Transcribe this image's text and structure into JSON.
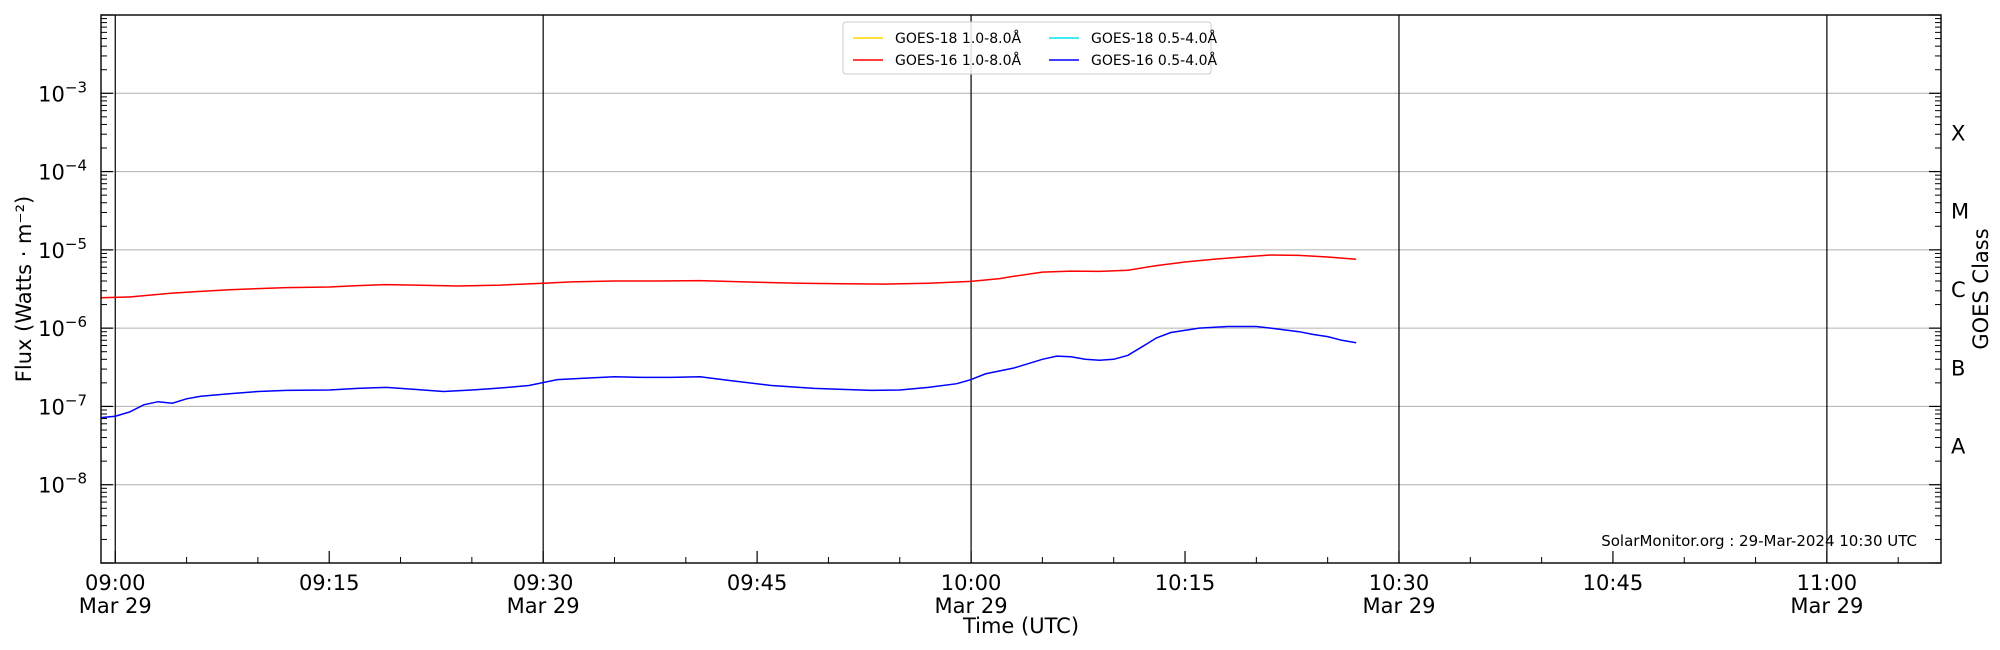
{
  "chart_data": {
    "type": "line",
    "title": "",
    "xlabel": "Time (UTC)",
    "ylabel": "Flux (Watts · m⁻²)",
    "ylabel_right": "GOES Class",
    "y_scale": "log",
    "ylim": [
      1e-09,
      0.01
    ],
    "xlim": [
      "2024-03-29T08:59",
      "2024-03-29T11:08"
    ],
    "grid": "horizontal at each decade",
    "legend_placement": "top-center",
    "y_ticks": [
      {
        "value": 1e-08,
        "base": "10",
        "exp": "−8"
      },
      {
        "value": 1e-07,
        "base": "10",
        "exp": "−7"
      },
      {
        "value": 1e-06,
        "base": "10",
        "exp": "−6"
      },
      {
        "value": 1e-05,
        "base": "10",
        "exp": "−5"
      },
      {
        "value": 0.0001,
        "base": "10",
        "exp": "−4"
      },
      {
        "value": 0.001,
        "base": "10",
        "exp": "−3"
      }
    ],
    "x_ticks": [
      {
        "time": "09:00",
        "label": "09:00",
        "date": "Mar 29"
      },
      {
        "time": "09:15",
        "label": "09:15",
        "date": ""
      },
      {
        "time": "09:30",
        "label": "09:30",
        "date": "Mar 29"
      },
      {
        "time": "09:45",
        "label": "09:45",
        "date": ""
      },
      {
        "time": "10:00",
        "label": "10:00",
        "date": "Mar 29"
      },
      {
        "time": "10:15",
        "label": "10:15",
        "date": ""
      },
      {
        "time": "10:30",
        "label": "10:30",
        "date": "Mar 29"
      },
      {
        "time": "10:45",
        "label": "10:45",
        "date": ""
      },
      {
        "time": "11:00",
        "label": "11:00",
        "date": "Mar 29"
      }
    ],
    "vertical_lines": [
      "09:00",
      "09:30",
      "10:00",
      "10:30",
      "11:00"
    ],
    "goes_classes": [
      {
        "label": "A",
        "value": 3.16e-08
      },
      {
        "label": "B",
        "value": 3.16e-07
      },
      {
        "label": "C",
        "value": 3.16e-06
      },
      {
        "label": "M",
        "value": 3.16e-05
      },
      {
        "label": "X",
        "value": 0.000316
      }
    ],
    "legend": [
      {
        "name": "GOES-18 1.0-8.0Å",
        "color": "#ffd700"
      },
      {
        "name": "GOES-16 1.0-8.0Å",
        "color": "#ff0000"
      },
      {
        "name": "GOES-18 0.5-4.0Å",
        "color": "#00e5ee"
      },
      {
        "name": "GOES-16 0.5-4.0Å",
        "color": "#0000ff"
      }
    ],
    "series": [
      {
        "name": "GOES-16 1.0-8.0Å",
        "color": "#ff0000",
        "points": [
          [
            "08:59",
            2.45e-06
          ],
          [
            "09:01",
            2.5e-06
          ],
          [
            "09:03",
            2.7e-06
          ],
          [
            "09:04",
            2.8e-06
          ],
          [
            "09:06",
            2.95e-06
          ],
          [
            "09:08",
            3.1e-06
          ],
          [
            "09:10",
            3.2e-06
          ],
          [
            "09:12",
            3.3e-06
          ],
          [
            "09:15",
            3.35e-06
          ],
          [
            "09:17",
            3.5e-06
          ],
          [
            "09:19",
            3.6e-06
          ],
          [
            "09:21",
            3.55e-06
          ],
          [
            "09:24",
            3.45e-06
          ],
          [
            "09:27",
            3.55e-06
          ],
          [
            "09:30",
            3.75e-06
          ],
          [
            "09:32",
            3.9e-06
          ],
          [
            "09:35",
            4e-06
          ],
          [
            "09:38",
            4e-06
          ],
          [
            "09:41",
            4.05e-06
          ],
          [
            "09:45",
            3.85e-06
          ],
          [
            "09:48",
            3.75e-06
          ],
          [
            "09:51",
            3.7e-06
          ],
          [
            "09:54",
            3.65e-06
          ],
          [
            "09:57",
            3.75e-06
          ],
          [
            "10:00",
            3.95e-06
          ],
          [
            "10:02",
            4.3e-06
          ],
          [
            "10:03",
            4.6e-06
          ],
          [
            "10:05",
            5.2e-06
          ],
          [
            "10:07",
            5.35e-06
          ],
          [
            "10:09",
            5.3e-06
          ],
          [
            "10:11",
            5.5e-06
          ],
          [
            "10:13",
            6.3e-06
          ],
          [
            "10:15",
            7e-06
          ],
          [
            "10:17",
            7.6e-06
          ],
          [
            "10:19",
            8.1e-06
          ],
          [
            "10:21",
            8.6e-06
          ],
          [
            "10:23",
            8.5e-06
          ],
          [
            "10:25",
            8.1e-06
          ],
          [
            "10:27",
            7.6e-06
          ]
        ]
      },
      {
        "name": "GOES-16 0.5-4.0Å",
        "color": "#0000ff",
        "points": [
          [
            "08:59",
            7.2e-08
          ],
          [
            "09:00",
            7.5e-08
          ],
          [
            "09:01",
            8.5e-08
          ],
          [
            "09:02",
            1.05e-07
          ],
          [
            "09:03",
            1.15e-07
          ],
          [
            "09:04",
            1.1e-07
          ],
          [
            "09:05",
            1.25e-07
          ],
          [
            "09:06",
            1.35e-07
          ],
          [
            "09:08",
            1.45e-07
          ],
          [
            "09:10",
            1.55e-07
          ],
          [
            "09:12",
            1.6e-07
          ],
          [
            "09:15",
            1.62e-07
          ],
          [
            "09:17",
            1.7e-07
          ],
          [
            "09:19",
            1.75e-07
          ],
          [
            "09:21",
            1.65e-07
          ],
          [
            "09:23",
            1.55e-07
          ],
          [
            "09:25",
            1.62e-07
          ],
          [
            "09:27",
            1.72e-07
          ],
          [
            "09:29",
            1.85e-07
          ],
          [
            "09:31",
            2.2e-07
          ],
          [
            "09:33",
            2.3e-07
          ],
          [
            "09:35",
            2.4e-07
          ],
          [
            "09:37",
            2.35e-07
          ],
          [
            "09:39",
            2.35e-07
          ],
          [
            "09:41",
            2.4e-07
          ],
          [
            "09:43",
            2.15e-07
          ],
          [
            "09:46",
            1.85e-07
          ],
          [
            "09:49",
            1.7e-07
          ],
          [
            "09:51",
            1.65e-07
          ],
          [
            "09:53",
            1.6e-07
          ],
          [
            "09:55",
            1.62e-07
          ],
          [
            "09:57",
            1.75e-07
          ],
          [
            "09:59",
            1.95e-07
          ],
          [
            "10:00",
            2.2e-07
          ],
          [
            "10:01",
            2.6e-07
          ],
          [
            "10:03",
            3.1e-07
          ],
          [
            "10:05",
            4e-07
          ],
          [
            "10:06",
            4.4e-07
          ],
          [
            "10:07",
            4.3e-07
          ],
          [
            "10:08",
            4e-07
          ],
          [
            "10:09",
            3.9e-07
          ],
          [
            "10:10",
            4e-07
          ],
          [
            "10:11",
            4.5e-07
          ],
          [
            "10:12",
            5.8e-07
          ],
          [
            "10:13",
            7.5e-07
          ],
          [
            "10:14",
            8.8e-07
          ],
          [
            "10:16",
            1e-06
          ],
          [
            "10:18",
            1.05e-06
          ],
          [
            "10:20",
            1.05e-06
          ],
          [
            "10:21",
            1e-06
          ],
          [
            "10:23",
            9e-07
          ],
          [
            "10:24",
            8.3e-07
          ],
          [
            "10:25",
            7.8e-07
          ],
          [
            "10:26",
            7e-07
          ],
          [
            "10:27",
            6.5e-07
          ]
        ]
      }
    ],
    "annotation": "SolarMonitor.org : 29-Mar-2024 10:30 UTC"
  }
}
